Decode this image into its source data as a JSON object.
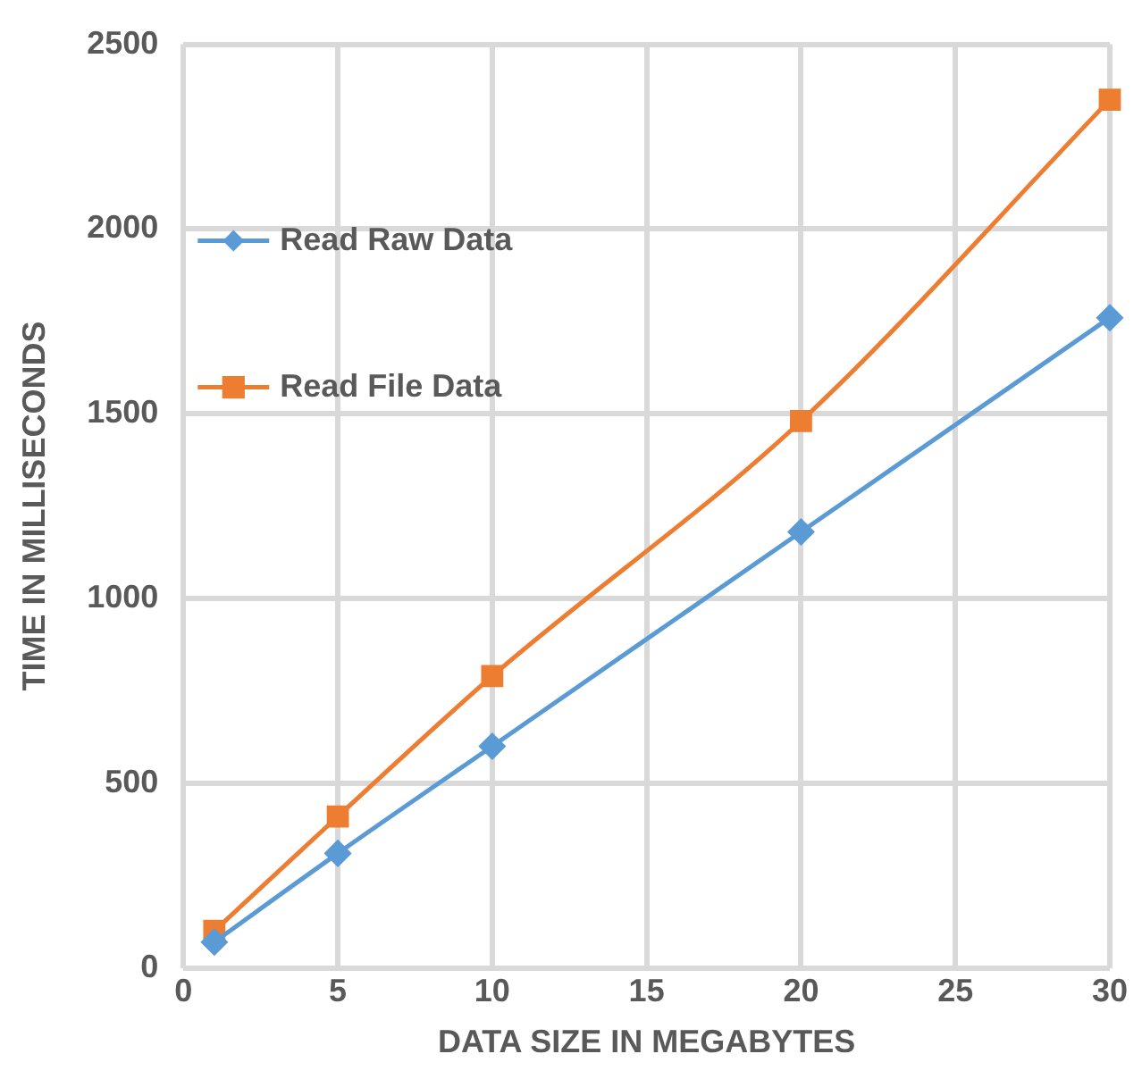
{
  "chart_data": {
    "type": "line",
    "xlabel": "DATA SIZE IN MEGABYTES",
    "ylabel": "TIME IN MILLISECONDS",
    "x": [
      1,
      5,
      10,
      20,
      30
    ],
    "series": [
      {
        "name": "Read Raw Data",
        "color": "#5b9bd5",
        "marker": "diamond",
        "values": [
          70,
          310,
          600,
          1180,
          1760
        ]
      },
      {
        "name": "Read File Data",
        "color": "#ed7d31",
        "marker": "square",
        "values": [
          100,
          410,
          790,
          1480,
          2350
        ]
      }
    ],
    "xlim": [
      0,
      30
    ],
    "xticks": [
      0,
      5,
      10,
      15,
      20,
      25,
      30
    ],
    "ylim": [
      0,
      2500
    ],
    "yticks": [
      0,
      500,
      1000,
      1500,
      2000,
      2500
    ],
    "grid": true,
    "legend": "top left"
  }
}
